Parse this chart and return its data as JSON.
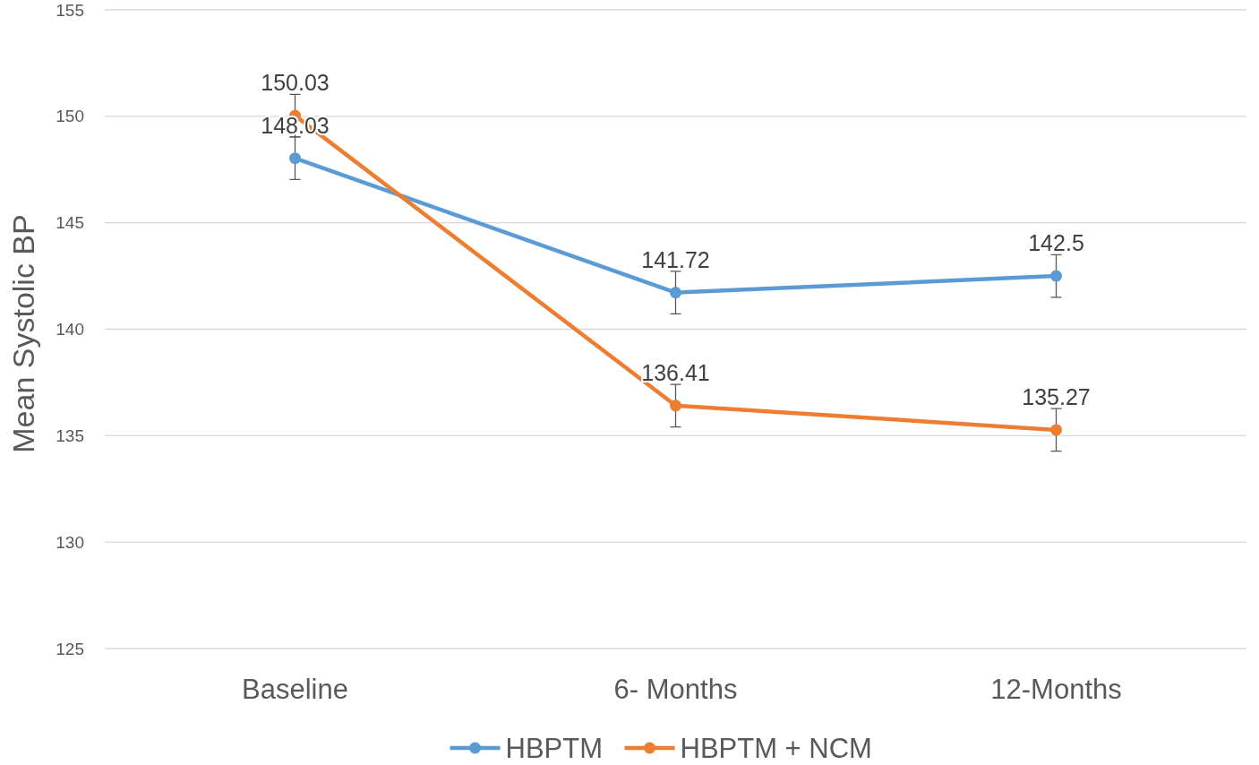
{
  "chart_data": {
    "type": "line",
    "ylabel": "Mean Systolic BP",
    "categories": [
      "Baseline",
      "6- Months",
      "12-Months"
    ],
    "series": [
      {
        "name": "HBPTM",
        "color": "#5b9bd5",
        "values": [
          148.03,
          141.72,
          142.5
        ],
        "errors": [
          1,
          1,
          1
        ]
      },
      {
        "name": "HBPTM + NCM",
        "color": "#ed7d31",
        "values": [
          150.03,
          136.41,
          135.27
        ],
        "errors": [
          1,
          1,
          1
        ]
      }
    ],
    "ylim": [
      125,
      155
    ],
    "yticks": [
      125,
      130,
      135,
      140,
      145,
      150,
      155
    ],
    "grid": "y",
    "legend": "bottom",
    "marker": "circle",
    "line_style": "solid",
    "data_labels": true
  }
}
